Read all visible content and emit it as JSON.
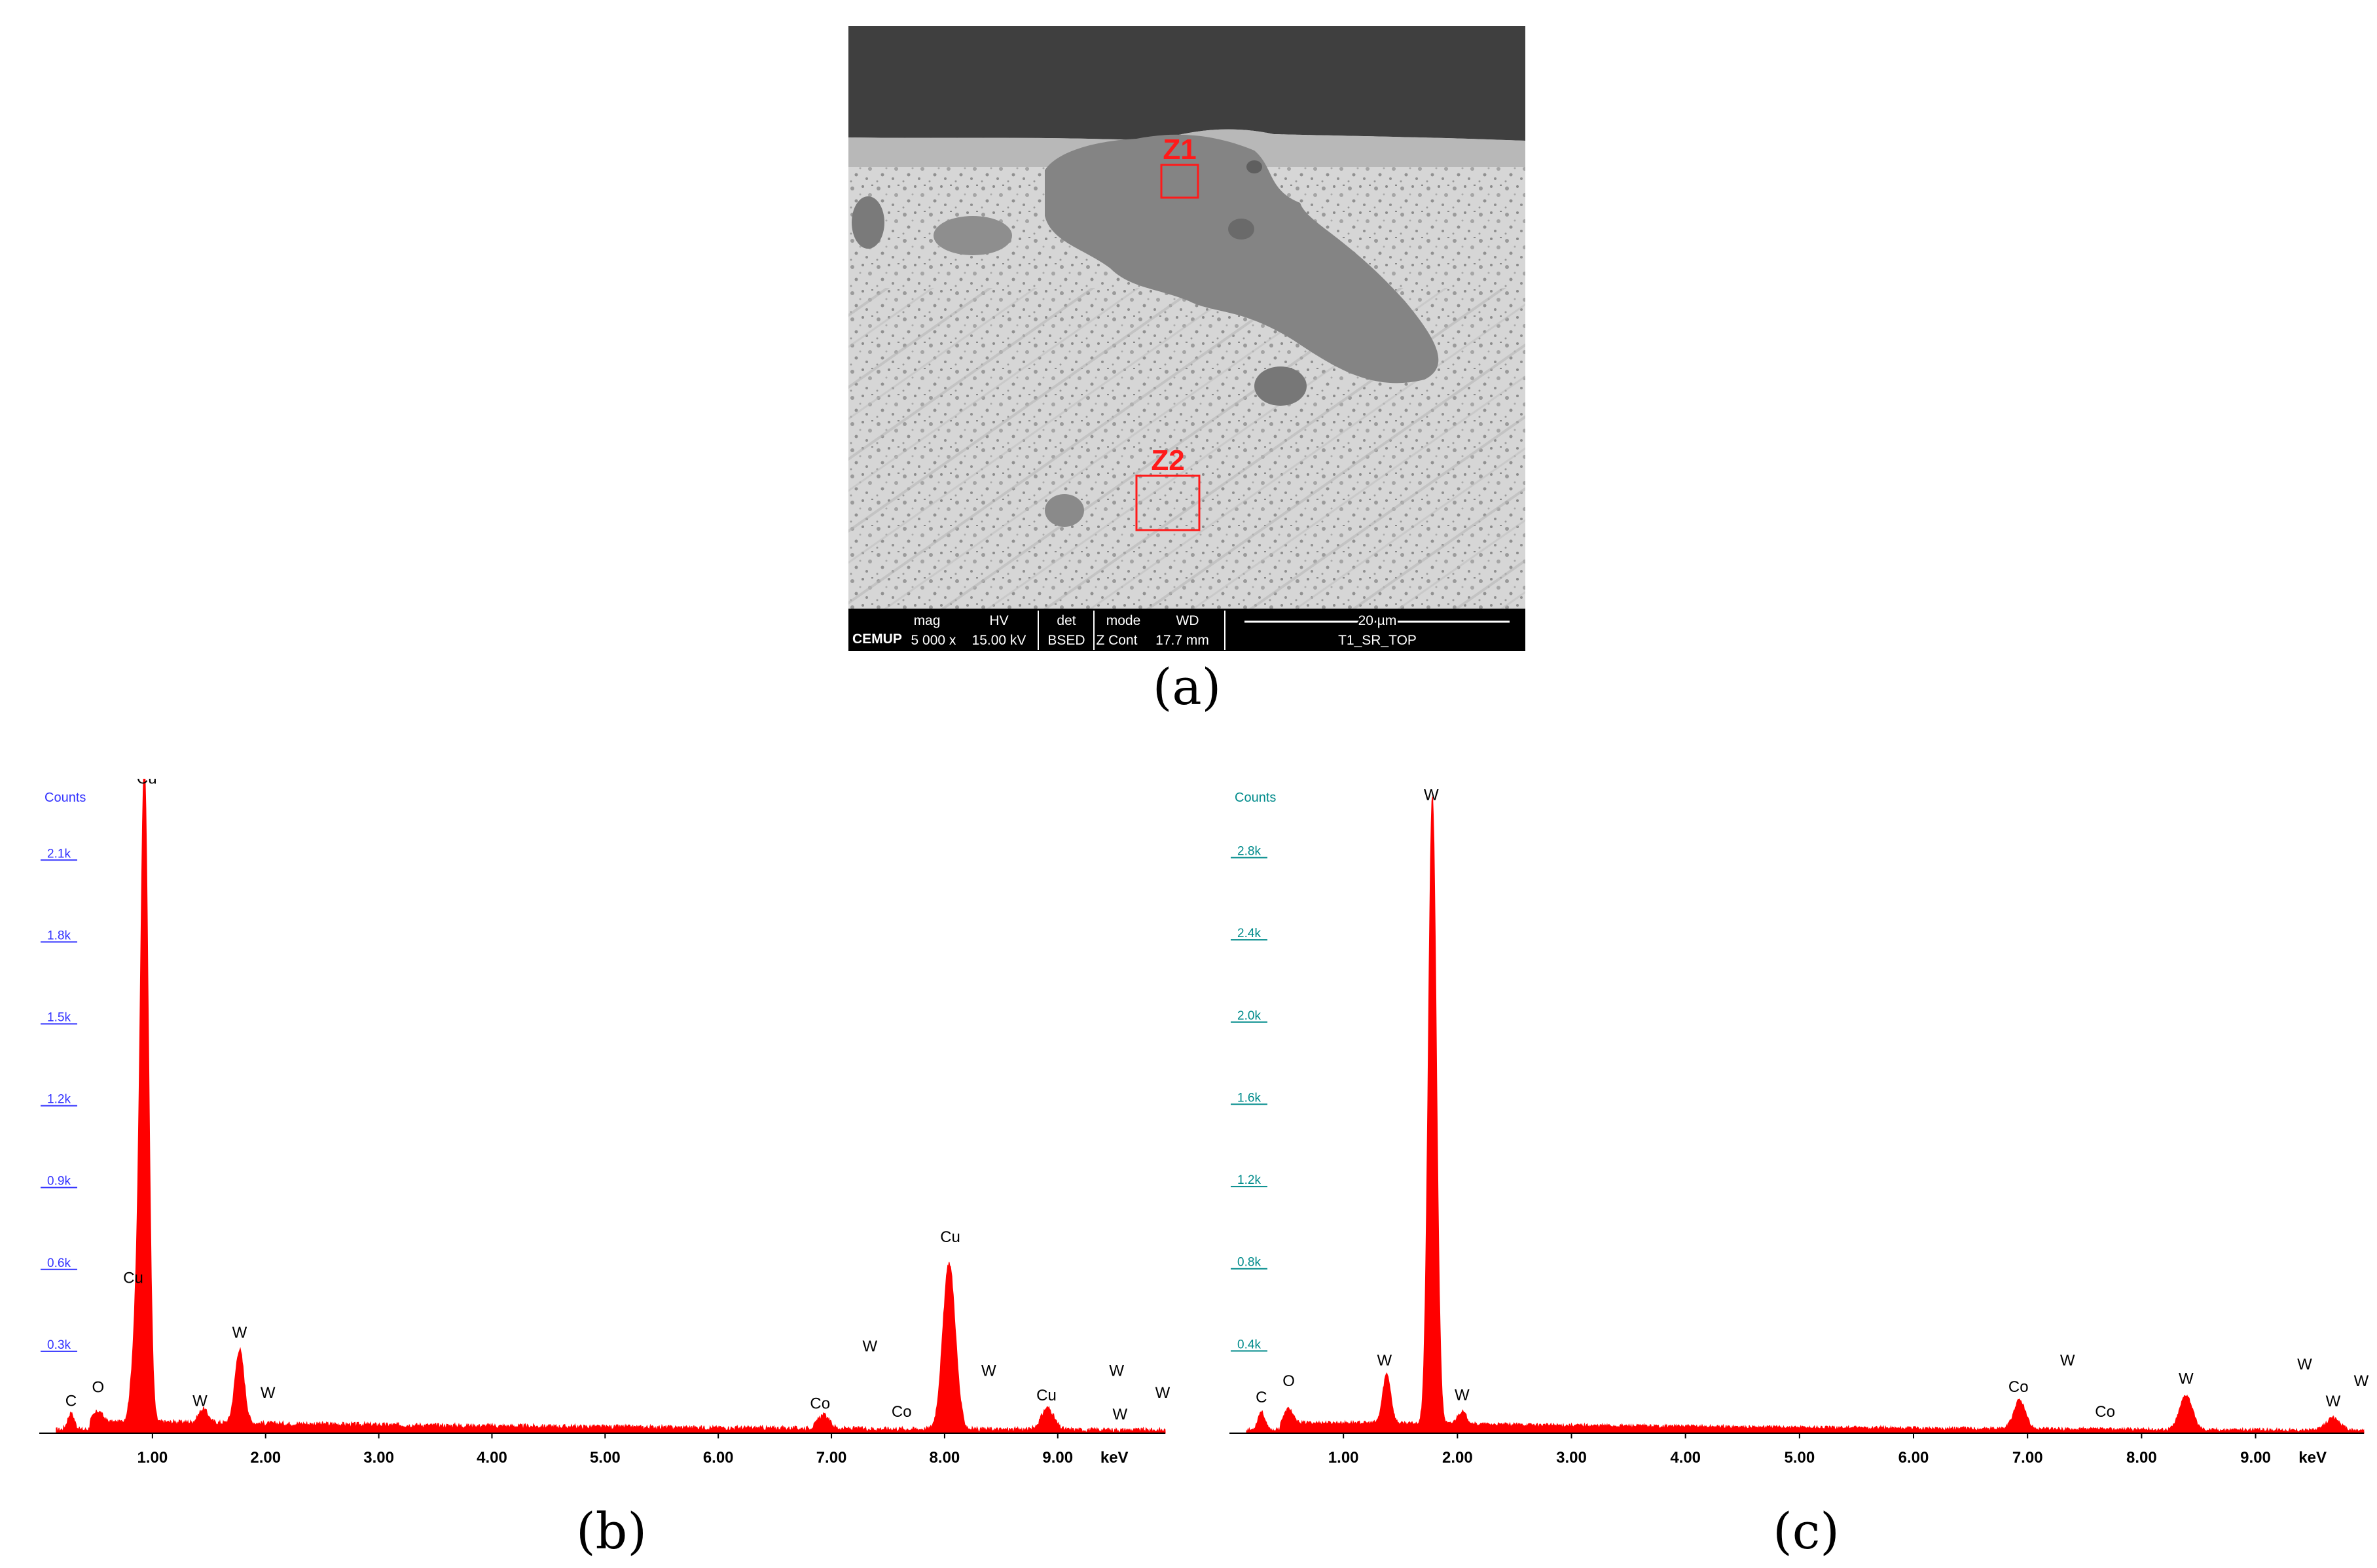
{
  "captions": {
    "a": "(a)",
    "b": "(b)",
    "c": "(c)"
  },
  "sem_image": {
    "zone_labels": [
      "Z1",
      "Z2"
    ],
    "databar": {
      "brand": "CEMUP",
      "headers": [
        "mag",
        "HV",
        "det",
        "mode",
        "WD"
      ],
      "values": [
        "5 000 x",
        "15.00 kV",
        "BSED",
        "Z Cont",
        "17.7 mm"
      ],
      "scale_label": "20 µm",
      "sample_label": "T1_SR_TOP"
    },
    "colors": {
      "zone_box": "#ff1a1a",
      "databar_bg": "#000000",
      "databar_text": "#ffffff"
    }
  },
  "chart_data": [
    {
      "type": "area",
      "panel": "b",
      "ylabel": "Counts",
      "xlabel": "keV",
      "xlim": [
        0.0,
        9.95
      ],
      "ylim": [
        0,
        2.35
      ],
      "x_ticks": [
        "1.00",
        "2.00",
        "3.00",
        "4.00",
        "5.00",
        "6.00",
        "7.00",
        "8.00",
        "9.00"
      ],
      "y_tick_values": [
        0.3,
        0.6,
        0.9,
        1.2,
        1.5,
        1.8,
        2.1
      ],
      "y_ticks": [
        "0.3k",
        "0.6k",
        "0.9k",
        "1.2k",
        "1.5k",
        "1.8k",
        "2.1k"
      ],
      "baseline": 0.04,
      "peaks": [
        {
          "label": "C",
          "x": 0.28,
          "height": 0.06,
          "width": 0.03
        },
        {
          "label": "O",
          "x": 0.52,
          "height": 0.04,
          "width": 0.04
        },
        {
          "label": "Cu",
          "x": 0.93,
          "height": 2.33,
          "width": 0.035
        },
        {
          "label": "Cu",
          "x": 0.86,
          "height": 0.35,
          "width": 0.04
        },
        {
          "label": "W",
          "x": 1.77,
          "height": 0.27,
          "width": 0.04
        },
        {
          "label": "W",
          "x": 1.45,
          "height": 0.05,
          "width": 0.04
        },
        {
          "label": "Co",
          "x": 6.93,
          "height": 0.05,
          "width": 0.05
        },
        {
          "label": "Cu",
          "x": 8.04,
          "height": 0.61,
          "width": 0.055
        },
        {
          "label": "Cu",
          "x": 8.91,
          "height": 0.08,
          "width": 0.055
        }
      ],
      "annotations": [
        {
          "label": "C",
          "x": 0.28,
          "y": 0.1
        },
        {
          "label": "O",
          "x": 0.52,
          "y": 0.15
        },
        {
          "label": "Cu",
          "x": 0.95,
          "y": 2.38
        },
        {
          "label": "Cu",
          "x": 0.83,
          "y": 0.55
        },
        {
          "label": "W",
          "x": 1.77,
          "y": 0.35
        },
        {
          "label": "W",
          "x": 1.42,
          "y": 0.1
        },
        {
          "label": "W",
          "x": 2.02,
          "y": 0.13
        },
        {
          "label": "Co",
          "x": 6.9,
          "y": 0.09
        },
        {
          "label": "W",
          "x": 7.34,
          "y": 0.3
        },
        {
          "label": "Co",
          "x": 7.62,
          "y": 0.06
        },
        {
          "label": "Cu",
          "x": 8.05,
          "y": 0.7
        },
        {
          "label": "W",
          "x": 8.39,
          "y": 0.21
        },
        {
          "label": "Cu",
          "x": 8.9,
          "y": 0.12
        },
        {
          "label": "W",
          "x": 9.52,
          "y": 0.21
        },
        {
          "label": "W",
          "x": 9.55,
          "y": 0.05
        },
        {
          "label": "W",
          "x": 9.95,
          "y": 0.13
        }
      ]
    },
    {
      "type": "area",
      "panel": "c",
      "ylabel": "Counts",
      "xlabel": "keV",
      "xlim": [
        0.0,
        9.95
      ],
      "ylim": [
        0,
        3.12
      ],
      "x_ticks": [
        "1.00",
        "2.00",
        "3.00",
        "4.00",
        "5.00",
        "6.00",
        "7.00",
        "8.00",
        "9.00"
      ],
      "y_tick_values": [
        0.4,
        0.8,
        1.2,
        1.6,
        2.0,
        2.4,
        2.8
      ],
      "y_ticks": [
        "0.4k",
        "0.8k",
        "1.2k",
        "1.6k",
        "2.0k",
        "2.4k",
        "2.8k"
      ],
      "baseline": 0.05,
      "peaks": [
        {
          "label": "C",
          "x": 0.28,
          "height": 0.09,
          "width": 0.03
        },
        {
          "label": "O",
          "x": 0.52,
          "height": 0.07,
          "width": 0.035
        },
        {
          "label": "W",
          "x": 1.38,
          "height": 0.24,
          "width": 0.035
        },
        {
          "label": "W",
          "x": 1.78,
          "height": 3.05,
          "width": 0.035
        },
        {
          "label": "W",
          "x": 2.04,
          "height": 0.06,
          "width": 0.04
        },
        {
          "label": "Co",
          "x": 6.93,
          "height": 0.14,
          "width": 0.05
        },
        {
          "label": "W",
          "x": 8.39,
          "height": 0.17,
          "width": 0.055
        },
        {
          "label": "W",
          "x": 9.68,
          "height": 0.06,
          "width": 0.06
        }
      ],
      "annotations": [
        {
          "label": "C",
          "x": 0.28,
          "y": 0.15
        },
        {
          "label": "O",
          "x": 0.52,
          "y": 0.23
        },
        {
          "label": "W",
          "x": 1.77,
          "y": 3.08
        },
        {
          "label": "W",
          "x": 1.36,
          "y": 0.33
        },
        {
          "label": "W",
          "x": 2.04,
          "y": 0.16
        },
        {
          "label": "Co",
          "x": 6.92,
          "y": 0.2
        },
        {
          "label": "W",
          "x": 7.35,
          "y": 0.33
        },
        {
          "label": "Co",
          "x": 7.68,
          "y": 0.08
        },
        {
          "label": "W",
          "x": 8.39,
          "y": 0.24
        },
        {
          "label": "W",
          "x": 9.43,
          "y": 0.31
        },
        {
          "label": "W",
          "x": 9.68,
          "y": 0.13
        },
        {
          "label": "W",
          "x": 9.95,
          "y": 0.23
        }
      ]
    }
  ],
  "chart_colors": {
    "fill": "#ff0000",
    "axis": "#000000",
    "label_text": "#000000",
    "ytick_b": "#3333ff",
    "ytick_c": "#008b8b"
  }
}
